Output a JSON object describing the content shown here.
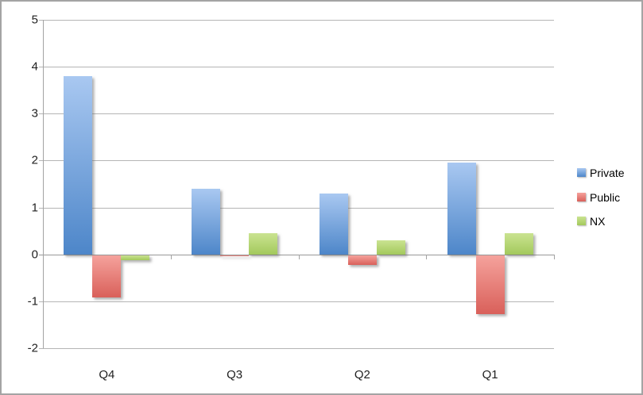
{
  "window": {
    "background_color": "#ffffff",
    "border_color": "#a4a4a4"
  },
  "chart_data": {
    "type": "bar",
    "title": "",
    "xlabel": "",
    "ylabel": "",
    "categories": [
      "Q4",
      "Q3",
      "Q2",
      "Q1"
    ],
    "series": [
      {
        "name": "Private",
        "values": [
          3.8,
          1.4,
          1.3,
          1.95
        ],
        "color_top": "#a9c8f1",
        "color_bottom": "#4d86c9"
      },
      {
        "name": "Public",
        "values": [
          -0.9,
          -0.03,
          -0.2,
          -1.25
        ],
        "color_top": "#f5a29c",
        "color_bottom": "#d9605a"
      },
      {
        "name": "NX",
        "values": [
          -0.1,
          0.45,
          0.3,
          0.45
        ],
        "color_top": "#cae391",
        "color_bottom": "#a3c95c"
      }
    ],
    "ylim": [
      -2,
      5
    ],
    "ytick_step": 1,
    "ytick_labels": [
      "5",
      "4",
      "3",
      "2",
      "1",
      "0",
      "-1",
      "-2"
    ],
    "grid": true,
    "legend_position": "right",
    "legend_entries": [
      "Private",
      "Public",
      "NX"
    ],
    "gridline_color": "#b5b5b5",
    "zero_line_color": "#999999",
    "axis_color": "#a3a3a3",
    "tick_label_color": "#1f1f1f"
  }
}
